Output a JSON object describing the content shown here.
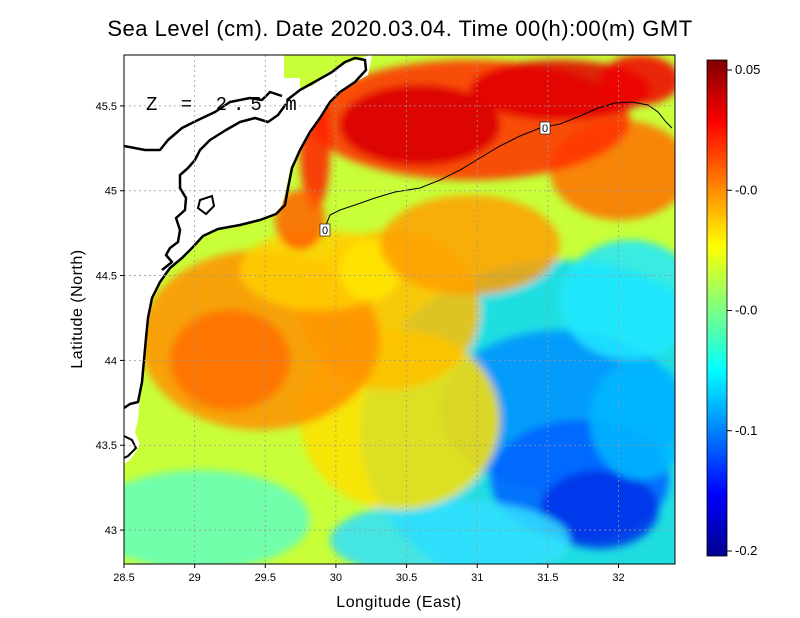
{
  "title": "Sea Level (cm). Date 2020.03.04. Time 00(h):00(m) GMT",
  "annotation": "Z = 2.5 m",
  "chart_data": {
    "type": "heatmap",
    "variable": "Sea Level",
    "units": "cm",
    "xlabel": "Longitude (East)",
    "ylabel": "Latitude (North)",
    "xlim": [
      28.5,
      32.4
    ],
    "ylim": [
      42.8,
      45.8
    ],
    "xticks": [
      "28.5",
      "29",
      "29.5",
      "30",
      "30.5",
      "31",
      "31.5",
      "32"
    ],
    "yticks": [
      "43",
      "43.5",
      "44",
      "44.5",
      "45",
      "45.5"
    ],
    "grid": true,
    "colormap": "jet",
    "color_range": [
      -0.2,
      0.05
    ],
    "colorbar_labels": [
      "0.05",
      "-0.0",
      "-0.0",
      "-0.1",
      "-0.2"
    ],
    "contour_label": "0",
    "colors": {
      "land": "#ffffff",
      "coastline": "#000000",
      "contour": "#000000",
      "grid": "#9a9a9a"
    }
  }
}
